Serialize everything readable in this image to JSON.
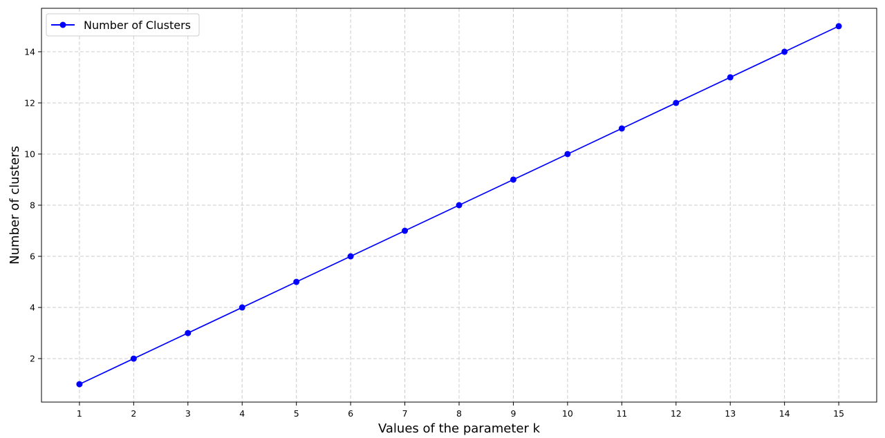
{
  "chart_data": {
    "type": "line",
    "xlabel": "Values of the parameter k",
    "ylabel": "Number of clusters",
    "x": [
      1,
      2,
      3,
      4,
      5,
      6,
      7,
      8,
      9,
      10,
      11,
      12,
      13,
      14,
      15
    ],
    "series": [
      {
        "name": "Number of Clusters",
        "values": [
          1,
          2,
          3,
          4,
          5,
          6,
          7,
          8,
          9,
          10,
          11,
          12,
          13,
          14,
          15
        ],
        "color": "#0000ff",
        "marker": "circle"
      }
    ],
    "xticks": [
      1,
      2,
      3,
      4,
      5,
      6,
      7,
      8,
      9,
      10,
      11,
      12,
      13,
      14,
      15
    ],
    "yticks": [
      2,
      4,
      6,
      8,
      10,
      12,
      14
    ],
    "xlim": [
      0.3,
      15.7
    ],
    "ylim": [
      0.3,
      15.7
    ],
    "grid": true,
    "grid_style": "dashed",
    "legend_position": "upper-left"
  }
}
